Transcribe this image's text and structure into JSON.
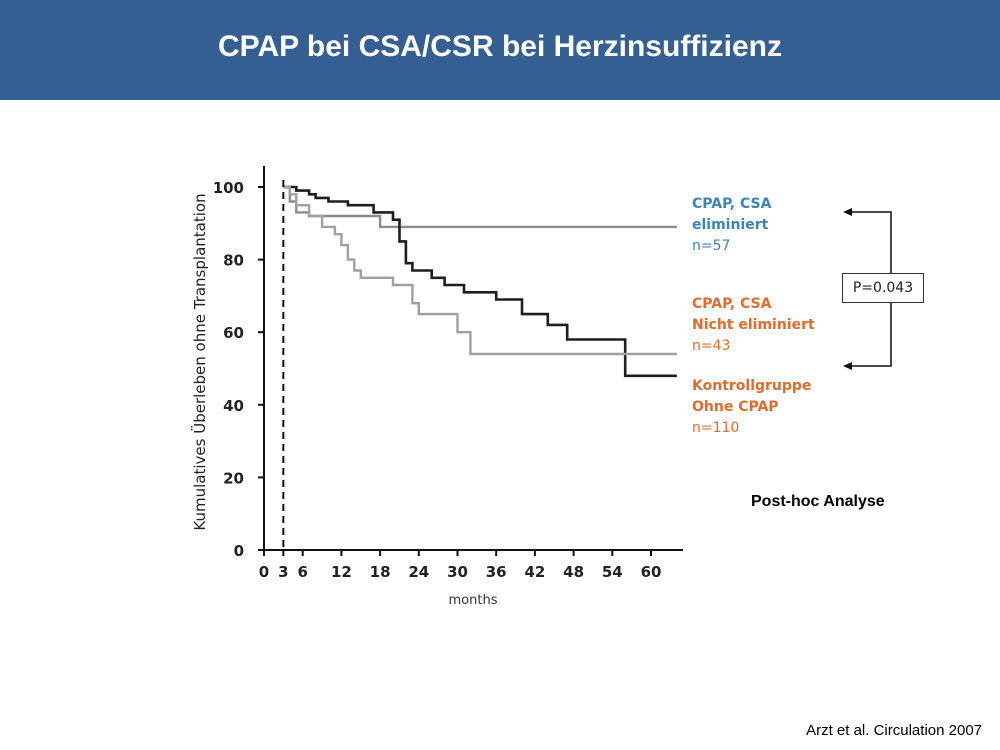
{
  "slide": {
    "title": "CPAP bei CSA/CSR bei Herzinsuffizienz",
    "annotation": "Post-hoc Analyse",
    "citation": "Arzt et al. Circulation 2007",
    "pvalue": "P=0.043"
  },
  "colors": {
    "header": "#355f93",
    "cpap_csa_eliminated": "#8c8c8c",
    "cpap_csa_not_eliminated": "#1e1e1e",
    "control": "#a0a0a0",
    "legend_blue": "#3b84b5",
    "legend_orange": "#e06c2e"
  },
  "chart_data": {
    "type": "line",
    "xlabel": "months",
    "ylabel": "Kumulatives Überleben ohne Transplantation",
    "xlim": [
      0,
      64
    ],
    "ylim": [
      0,
      105
    ],
    "x_ticks": [
      0,
      3,
      6,
      12,
      18,
      24,
      30,
      36,
      42,
      48,
      54,
      60
    ],
    "y_ticks": [
      0,
      20,
      40,
      60,
      80,
      100
    ],
    "reference_line_x": 3,
    "legend_placement": "right",
    "legend": [
      {
        "lines": [
          "CPAP, CSA",
          "eliminiert"
        ],
        "n": "n=57",
        "color": "#3b84b5"
      },
      {
        "lines": [
          "CPAP, CSA",
          "Nicht eliminiert"
        ],
        "n": "n=43",
        "color": "#e06c2e"
      },
      {
        "lines": [
          "Kontrollgruppe",
          "Ohne CPAP"
        ],
        "n": "n=110",
        "color": "#e06c2e"
      }
    ],
    "series": [
      {
        "name": "CPAP, CSA eliminiert",
        "color": "#8c8c8c",
        "x": [
          3,
          4,
          4,
          5,
          5,
          7,
          7,
          18,
          18,
          64
        ],
        "y": [
          100,
          100,
          96,
          96,
          93,
          93,
          92,
          92,
          89,
          89
        ]
      },
      {
        "name": "Kontrollgruppe Ohne CPAP",
        "color": "#1e1e1e",
        "x": [
          3,
          5,
          5,
          7,
          7,
          8,
          8,
          10,
          10,
          13,
          13,
          17,
          17,
          20,
          20,
          21,
          21,
          22,
          22,
          23,
          23,
          26,
          26,
          28,
          28,
          31,
          31,
          36,
          36,
          40,
          40,
          44,
          44,
          47,
          47,
          56,
          56,
          64
        ],
        "y": [
          100,
          100,
          99,
          99,
          98,
          98,
          97,
          97,
          96,
          96,
          95,
          95,
          93,
          93,
          91,
          91,
          85,
          85,
          79,
          79,
          77,
          77,
          75,
          75,
          73,
          73,
          71,
          71,
          69,
          69,
          65,
          65,
          62,
          62,
          58,
          58,
          48,
          48
        ]
      },
      {
        "name": "CPAP, CSA Nicht eliminiert",
        "color": "#a0a0a0",
        "x": [
          3,
          4,
          4,
          5,
          5,
          7,
          7,
          9,
          9,
          11,
          11,
          12,
          12,
          13,
          13,
          14,
          14,
          15,
          15,
          20,
          20,
          23,
          23,
          24,
          24,
          30,
          30,
          32,
          32,
          64
        ],
        "y": [
          100,
          100,
          98,
          98,
          95,
          95,
          92,
          92,
          89,
          89,
          87,
          87,
          84,
          84,
          80,
          80,
          77,
          77,
          75,
          75,
          73,
          73,
          68,
          68,
          65,
          65,
          60,
          60,
          54,
          54
        ]
      }
    ]
  }
}
